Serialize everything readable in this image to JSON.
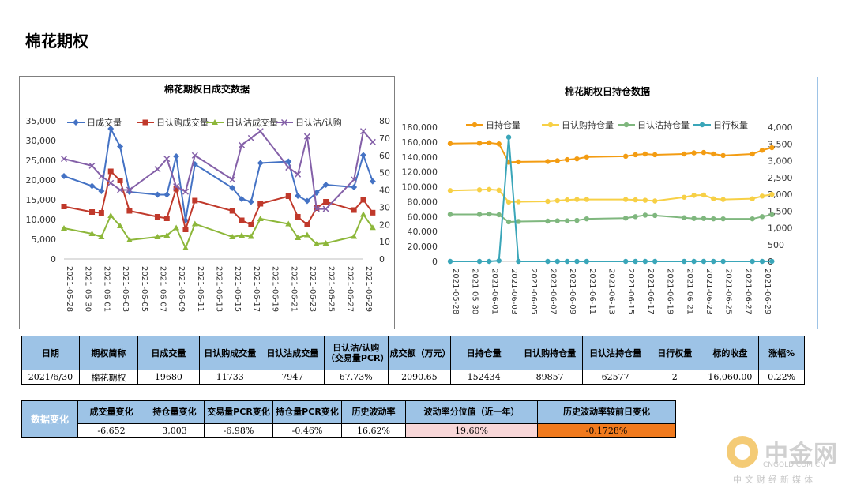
{
  "page_title": "棉花期权",
  "chart_data": [
    {
      "type": "line",
      "title": "棉花期权日成交数据",
      "categories": [
        "2021-05-28",
        "2021-05-31",
        "2021-06-01",
        "2021-06-02",
        "2021-06-03",
        "2021-06-04",
        "2021-06-07",
        "2021-06-08",
        "2021-06-09",
        "2021-06-10",
        "2021-06-11",
        "2021-06-15",
        "2021-06-16",
        "2021-06-17",
        "2021-06-18",
        "2021-06-21",
        "2021-06-22",
        "2021-06-23",
        "2021-06-24",
        "2021-06-25",
        "2021-06-28",
        "2021-06-29",
        "2021-06-30"
      ],
      "tick_labels": [
        "2021-05-28",
        "2021-05-30",
        "2021-06-01",
        "2021-06-03",
        "2021-06-05",
        "2021-06-07",
        "2021-06-09",
        "2021-06-11",
        "2021-06-13",
        "2021-06-15",
        "2021-06-17",
        "2021-06-19",
        "2021-06-21",
        "2021-06-23",
        "2021-06-25",
        "2021-06-27",
        "2021-06-29"
      ],
      "y_ticks": [
        "0",
        "5,000",
        "10,000",
        "15,000",
        "20,000",
        "25,000",
        "30,000",
        "35,000"
      ],
      "y2_ticks": [
        "0",
        "10",
        "20",
        "30",
        "40",
        "50",
        "60",
        "70",
        "80"
      ],
      "ylim": [
        0,
        35000
      ],
      "y2lim": [
        0,
        80
      ],
      "series": [
        {
          "name": "日成交量",
          "color": "#4472c4",
          "axis": "left",
          "marker": "diamond",
          "values": [
            21000,
            18500,
            17200,
            33000,
            28500,
            17000,
            16300,
            16300,
            26000,
            9800,
            24000,
            18000,
            15200,
            14500,
            24300,
            24700,
            16000,
            14700,
            16800,
            18800,
            18200,
            26300,
            19680
          ]
        },
        {
          "name": "日认购成交量",
          "color": "#c0392b",
          "axis": "left",
          "marker": "square",
          "values": [
            13300,
            11900,
            11700,
            22200,
            19900,
            12200,
            10700,
            10300,
            17800,
            7500,
            14800,
            12200,
            9800,
            8700,
            14000,
            15900,
            10700,
            8700,
            12900,
            14500,
            12400,
            15000,
            11733
          ]
        },
        {
          "name": "日认沽成交量",
          "color": "#8db73a",
          "axis": "left",
          "marker": "triangle",
          "values": [
            7800,
            6400,
            5600,
            11000,
            8400,
            4800,
            5600,
            6000,
            7900,
            2800,
            8900,
            5600,
            6000,
            5700,
            10200,
            8900,
            5400,
            6100,
            3800,
            4000,
            5700,
            11300,
            7947
          ]
        },
        {
          "name": "日认沽/认购",
          "color": "#8460a8",
          "axis": "right",
          "marker": "x",
          "values": [
            58,
            54,
            48,
            44,
            40,
            40,
            52,
            58,
            42,
            39,
            60,
            46,
            66,
            70,
            74,
            53,
            49,
            71,
            29,
            29,
            46,
            74,
            67.73
          ]
        }
      ]
    },
    {
      "type": "line",
      "title": "棉花期权日持仓数据",
      "categories": [
        "2021-05-28",
        "2021-05-31",
        "2021-06-01",
        "2021-06-02",
        "2021-06-03",
        "2021-06-04",
        "2021-06-07",
        "2021-06-08",
        "2021-06-09",
        "2021-06-10",
        "2021-06-11",
        "2021-06-15",
        "2021-06-16",
        "2021-06-17",
        "2021-06-18",
        "2021-06-21",
        "2021-06-22",
        "2021-06-23",
        "2021-06-24",
        "2021-06-25",
        "2021-06-28",
        "2021-06-29",
        "2021-06-30"
      ],
      "tick_labels": [
        "2021-05-28",
        "2021-05-30",
        "2021-06-01",
        "2021-06-03",
        "2021-06-05",
        "2021-06-07",
        "2021-06-09",
        "2021-06-11",
        "2021-06-13",
        "2021-06-15",
        "2021-06-17",
        "2021-06-19",
        "2021-06-21",
        "2021-06-23",
        "2021-06-25",
        "2021-06-27",
        "2021-06-29"
      ],
      "y_ticks": [
        "0",
        "20,000",
        "40,000",
        "60,000",
        "80,000",
        "100,000",
        "120,000",
        "140,000",
        "160,000",
        "180,000"
      ],
      "y2_ticks": [
        "0",
        "500",
        "1,000",
        "1,500",
        "2,000",
        "2,500",
        "3,000",
        "3,500",
        "4,000"
      ],
      "ylim": [
        0,
        180000
      ],
      "y2lim": [
        0,
        4000
      ],
      "series": [
        {
          "name": "日持仓量",
          "color": "#f39c12",
          "axis": "left",
          "values": [
            158000,
            158500,
            159000,
            157500,
            133000,
            133500,
            134000,
            135000,
            136500,
            137500,
            140000,
            141000,
            143000,
            144000,
            143000,
            144000,
            145500,
            146000,
            144000,
            142000,
            144000,
            149000,
            152434
          ]
        },
        {
          "name": "日认购持仓量",
          "color": "#f7d046",
          "axis": "left",
          "values": [
            95000,
            96000,
            96500,
            95500,
            79500,
            80000,
            80500,
            81500,
            82500,
            83000,
            83000,
            83000,
            82500,
            82000,
            81000,
            86000,
            88500,
            89000,
            84000,
            83000,
            84000,
            87500,
            89857
          ]
        },
        {
          "name": "日认沽持仓量",
          "color": "#7fb77e",
          "axis": "left",
          "values": [
            63000,
            63000,
            63500,
            62500,
            53000,
            53500,
            54000,
            54500,
            54500,
            55000,
            57000,
            58000,
            60000,
            62000,
            61500,
            58500,
            57500,
            57500,
            57000,
            57000,
            57000,
            60000,
            62577
          ]
        },
        {
          "name": "日行权量",
          "color": "#3aa6b9",
          "axis": "right",
          "values": [
            0,
            0,
            0,
            20,
            3700,
            0,
            0,
            0,
            0,
            0,
            0,
            0,
            0,
            0,
            0,
            0,
            0,
            0,
            0,
            0,
            0,
            0,
            2
          ]
        }
      ]
    }
  ],
  "stats_table": {
    "headers": [
      "日期",
      "期权简称",
      "日成交量",
      "日认购成交量",
      "日认沽成交量",
      "日认沽/认购（交易量PCR）",
      "成交额（万元）",
      "日持仓量",
      "日认购持仓量",
      "日认沽持仓量",
      "日行权量",
      "标的收盘",
      "涨幅%"
    ],
    "values": [
      "2021/6/30",
      "棉花期权",
      "19680",
      "11733",
      "7947",
      "67.73%",
      "2090.65",
      "152434",
      "89857",
      "62577",
      "2",
      "16,060.00",
      "0.22%"
    ]
  },
  "change_table": {
    "label": "数据变化",
    "headers": [
      "成交量变化",
      "持仓量变化",
      "交易量PCR变化",
      "持仓量PCR变化",
      "历史波动率",
      "波动率分位值（近一年）",
      "历史波动率较前日变化"
    ],
    "values": [
      "-6,652",
      "3,003",
      "-6.98%",
      "-0.46%",
      "16.62%",
      "19.60%",
      "-0.1728%"
    ]
  },
  "watermark": {
    "name": "中金网",
    "domain": "CNGOLD.COM.CN",
    "tagline": "中文财经新媒体"
  }
}
